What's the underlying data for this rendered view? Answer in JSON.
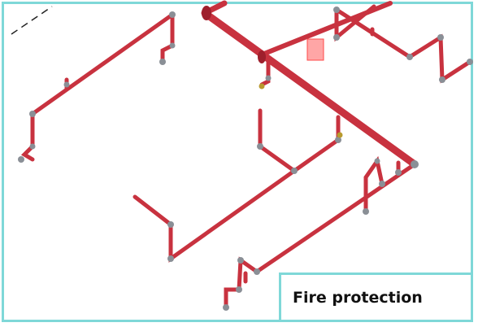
{
  "caption": {
    "title": "Fire protection"
  },
  "colors": {
    "frame": "#7fd8d8",
    "pipe": "#c8323f",
    "pipe_dark": "#9e1f2c",
    "fitting": "#8a8f96",
    "valve_highlight": "#ff6b6b"
  }
}
